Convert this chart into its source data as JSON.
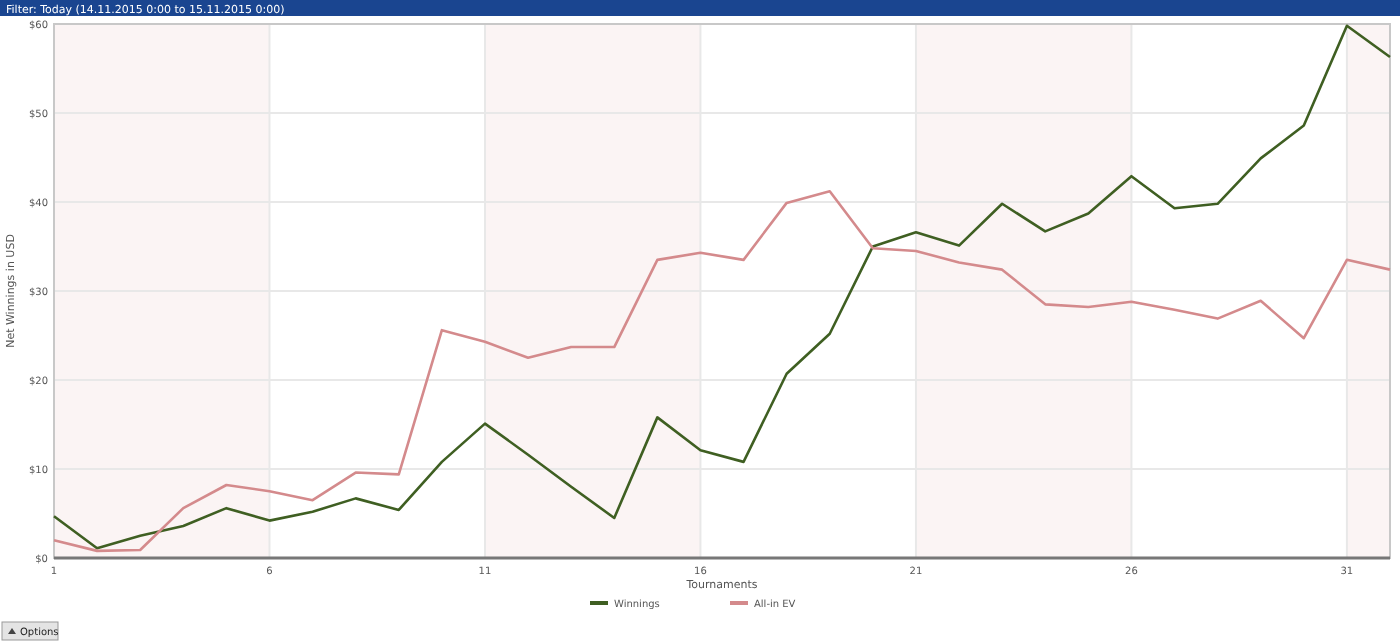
{
  "chart_data": {
    "type": "line",
    "title": "Filter: Today (14.11.2015 0:00 to 15.11.2015 0:00)",
    "xlabel": "Tournaments",
    "ylabel": "Net Winnings in USD",
    "x": [
      1,
      2,
      3,
      4,
      5,
      6,
      7,
      8,
      9,
      10,
      11,
      12,
      13,
      14,
      15,
      16,
      17,
      18,
      19,
      20,
      21,
      22,
      23,
      24,
      25,
      26,
      27,
      28,
      29,
      30,
      31,
      32
    ],
    "series": [
      {
        "name": "Winnings",
        "color": "#3f5f22",
        "values": [
          4.7,
          1.1,
          2.5,
          3.6,
          5.6,
          4.2,
          5.2,
          6.7,
          5.4,
          10.8,
          15.1,
          11.6,
          8.0,
          4.5,
          15.8,
          12.1,
          10.8,
          20.7,
          25.2,
          35.0,
          36.6,
          35.1,
          39.8,
          36.7,
          38.7,
          42.9,
          39.3,
          39.8,
          44.9,
          48.6,
          59.8,
          56.3
        ]
      },
      {
        "name": "All-in EV",
        "color": "#d48a8c",
        "values": [
          2.0,
          0.8,
          0.9,
          5.6,
          8.2,
          7.5,
          6.5,
          9.6,
          9.4,
          25.6,
          24.3,
          22.5,
          23.7,
          23.7,
          33.5,
          34.3,
          33.5,
          39.9,
          41.2,
          34.8,
          34.5,
          33.2,
          32.4,
          28.5,
          28.2,
          28.8,
          27.9,
          26.9,
          28.9,
          24.7,
          33.5,
          32.4
        ]
      }
    ],
    "xlim": [
      1,
      32
    ],
    "xticks": [
      1,
      6,
      11,
      16,
      21,
      26,
      31
    ],
    "ylim": [
      0,
      60
    ],
    "yticks": [
      {
        "value": 0,
        "label": "$0"
      },
      {
        "value": 10,
        "label": "$10"
      },
      {
        "value": 20,
        "label": "$20"
      },
      {
        "value": 30,
        "label": "$30"
      },
      {
        "value": 40,
        "label": "$40"
      },
      {
        "value": 50,
        "label": "$50"
      },
      {
        "value": 60,
        "label": "$60"
      }
    ],
    "bands": [
      {
        "axis": "x",
        "from": 1,
        "to": 6,
        "color": "#fbf4f4"
      },
      {
        "axis": "x",
        "from": 11,
        "to": 16,
        "color": "#fbf4f4"
      },
      {
        "axis": "x",
        "from": 21,
        "to": 26,
        "color": "#fbf4f4"
      },
      {
        "axis": "x",
        "from": 31,
        "to": 32,
        "color": "#fbf4f4"
      }
    ],
    "annotations": [
      "Options"
    ],
    "grid": true,
    "legend": "bottom",
    "marker": "none",
    "line_style": "solid"
  }
}
